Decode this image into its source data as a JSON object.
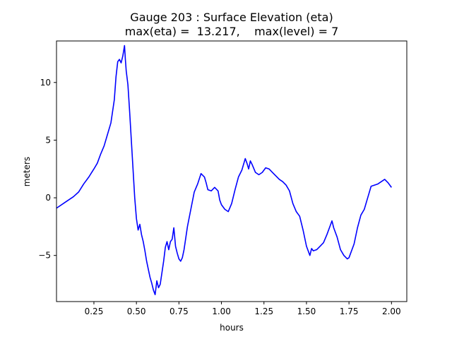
{
  "chart_data": {
    "type": "line",
    "title_line1": "Gauge 203 : Surface Elevation (eta)",
    "title_line2": "max(eta) =  13.217,    max(level) = 7",
    "xlabel": "hours",
    "ylabel": "meters",
    "xlim": [
      0.03,
      2.09
    ],
    "ylim": [
      -9.0,
      13.6
    ],
    "xticks": [
      0.25,
      0.5,
      0.75,
      1.0,
      1.25,
      1.5,
      1.75,
      2.0
    ],
    "xtick_labels": [
      "0.25",
      "0.50",
      "0.75",
      "1.00",
      "1.25",
      "1.50",
      "1.75",
      "2.00"
    ],
    "yticks": [
      -5,
      0,
      5,
      10
    ],
    "ytick_labels": [
      "−5",
      "0",
      "5",
      "10"
    ],
    "series": [
      {
        "name": "eta",
        "color": "#0000ff",
        "x": [
          0.03,
          0.08,
          0.13,
          0.16,
          0.19,
          0.22,
          0.25,
          0.27,
          0.29,
          0.31,
          0.33,
          0.35,
          0.37,
          0.38,
          0.39,
          0.4,
          0.41,
          0.42,
          0.43,
          0.435,
          0.44,
          0.45,
          0.46,
          0.47,
          0.48,
          0.49,
          0.5,
          0.51,
          0.52,
          0.53,
          0.54,
          0.55,
          0.56,
          0.57,
          0.58,
          0.59,
          0.6,
          0.61,
          0.62,
          0.63,
          0.64,
          0.65,
          0.66,
          0.67,
          0.68,
          0.69,
          0.7,
          0.71,
          0.72,
          0.73,
          0.74,
          0.75,
          0.76,
          0.77,
          0.78,
          0.79,
          0.8,
          0.82,
          0.84,
          0.86,
          0.88,
          0.9,
          0.91,
          0.92,
          0.94,
          0.96,
          0.98,
          0.99,
          1.0,
          1.02,
          1.04,
          1.06,
          1.08,
          1.1,
          1.12,
          1.14,
          1.15,
          1.16,
          1.17,
          1.18,
          1.2,
          1.22,
          1.24,
          1.26,
          1.28,
          1.3,
          1.32,
          1.34,
          1.36,
          1.38,
          1.4,
          1.42,
          1.44,
          1.46,
          1.48,
          1.5,
          1.52,
          1.53,
          1.54,
          1.56,
          1.58,
          1.6,
          1.62,
          1.64,
          1.65,
          1.66,
          1.68,
          1.7,
          1.72,
          1.74,
          1.75,
          1.76,
          1.78,
          1.8,
          1.82,
          1.84,
          1.86,
          1.88,
          1.9,
          1.92,
          1.94,
          1.96,
          1.98,
          1.99,
          2.0
        ],
        "values": [
          -0.9,
          -0.4,
          0.1,
          0.5,
          1.2,
          1.8,
          2.5,
          3.0,
          3.8,
          4.5,
          5.5,
          6.5,
          8.5,
          10.5,
          11.8,
          12.0,
          11.7,
          12.3,
          13.2,
          12.0,
          11.0,
          9.8,
          7.5,
          5.0,
          2.5,
          0.0,
          -1.8,
          -2.8,
          -2.3,
          -3.2,
          -3.8,
          -4.6,
          -5.5,
          -6.2,
          -6.9,
          -7.4,
          -8.0,
          -8.4,
          -7.2,
          -7.8,
          -7.5,
          -6.5,
          -5.5,
          -4.3,
          -3.8,
          -4.5,
          -3.8,
          -3.6,
          -2.6,
          -4.2,
          -4.8,
          -5.3,
          -5.5,
          -5.2,
          -4.5,
          -3.5,
          -2.5,
          -1.0,
          0.5,
          1.2,
          2.1,
          1.8,
          1.3,
          0.7,
          0.6,
          0.9,
          0.6,
          -0.2,
          -0.6,
          -1.0,
          -1.2,
          -0.5,
          0.7,
          1.8,
          2.4,
          3.4,
          3.0,
          2.5,
          3.2,
          2.9,
          2.2,
          2.0,
          2.2,
          2.6,
          2.5,
          2.2,
          1.9,
          1.6,
          1.4,
          1.1,
          0.6,
          -0.5,
          -1.2,
          -1.6,
          -2.8,
          -4.2,
          -5.0,
          -4.4,
          -4.6,
          -4.5,
          -4.2,
          -3.9,
          -3.2,
          -2.4,
          -2.0,
          -2.6,
          -3.4,
          -4.5,
          -5.0,
          -5.3,
          -5.2,
          -4.8,
          -4.0,
          -2.6,
          -1.5,
          -1.0,
          0.0,
          1.0,
          1.1,
          1.2,
          1.4,
          1.6,
          1.3,
          1.1,
          0.9
        ]
      }
    ]
  }
}
